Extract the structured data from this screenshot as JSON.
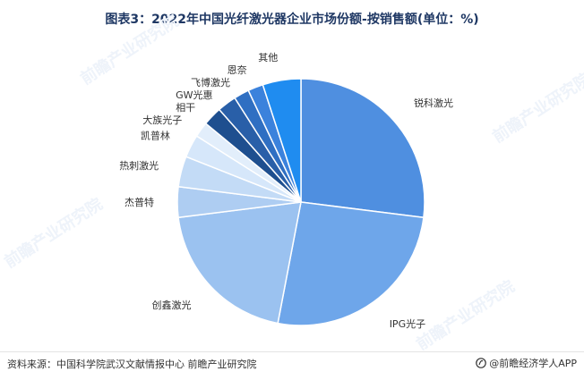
{
  "title": "图表3：2022年中国光纤激光器企业市场份额-按销售额(单位：%)",
  "chart_data": {
    "type": "pie",
    "title": "图表3：2022年中国光纤激光器企业市场份额-按销售额(单位：%)",
    "unit": "%",
    "slices": [
      {
        "label": "锐科激光",
        "value": 27.0,
        "color": "#4f8fe0"
      },
      {
        "label": "IPG光子",
        "value": 26.0,
        "color": "#6ea6ea"
      },
      {
        "label": "创鑫激光",
        "value": 20.0,
        "color": "#9bc2f0"
      },
      {
        "label": "杰普特",
        "value": 4.0,
        "color": "#aecdf2"
      },
      {
        "label": "热刺激光",
        "value": 4.0,
        "color": "#c3dbf6"
      },
      {
        "label": "凯普林",
        "value": 3.0,
        "color": "#d6e7fa"
      },
      {
        "label": "大族光子",
        "value": 2.0,
        "color": "#e2eefb"
      },
      {
        "label": "相干",
        "value": 2.5,
        "color": "#1e4f8f"
      },
      {
        "label": "GW光惠",
        "value": 2.5,
        "color": "#295fa8"
      },
      {
        "label": "飞博激光",
        "value": 2.0,
        "color": "#2f6fc2"
      },
      {
        "label": "恩奈",
        "value": 2.0,
        "color": "#3b82dc"
      },
      {
        "label": "其他",
        "value": 5.0,
        "color": "#1f8cf0"
      }
    ]
  },
  "watermark": {
    "text": "前瞻产业研究院"
  },
  "footer": {
    "source": "资料来源：中国科学院武汉文献情报中心 前瞻产业研究院",
    "brand": "@前瞻经济学人APP"
  }
}
